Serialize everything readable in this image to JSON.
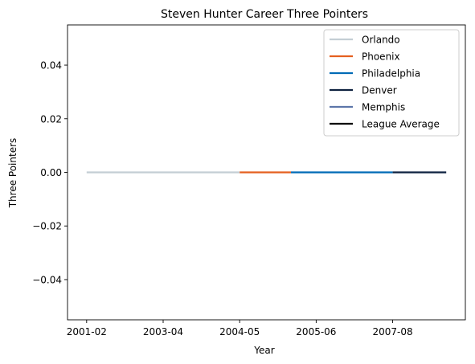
{
  "chart_data": {
    "type": "line",
    "title": "Steven Hunter Career Three Pointers",
    "xlabel": "Year",
    "ylabel": "Three Pointers",
    "x_tick_labels": [
      "2001-02",
      "2003-04",
      "2004-05",
      "2005-06",
      "2007-08"
    ],
    "x_tick_positions": [
      0,
      1,
      2,
      3,
      4
    ],
    "ylim": [
      -0.055,
      0.055
    ],
    "y_ticks": [
      -0.04,
      -0.02,
      0.0,
      0.02,
      0.04
    ],
    "y_tick_labels": [
      "−0.04",
      "−0.02",
      "0.00",
      "0.02",
      "0.04"
    ],
    "xlim": [
      -0.25,
      4.95
    ],
    "grid": false,
    "legend_position": "top-right",
    "series": [
      {
        "name": "Orlando",
        "color": "#c4ced4",
        "x": [
          0,
          2
        ],
        "values": [
          0,
          0
        ]
      },
      {
        "name": "Phoenix",
        "color": "#e56020",
        "x": [
          2,
          2.67
        ],
        "values": [
          0,
          0
        ]
      },
      {
        "name": "Philadelphia",
        "color": "#006bb6",
        "x": [
          2.67,
          4
        ],
        "values": [
          0,
          0
        ]
      },
      {
        "name": "Denver",
        "color": "#0e2240",
        "x": [
          4,
          4.7
        ],
        "values": [
          0,
          0
        ]
      },
      {
        "name": "Memphis",
        "color": "#5d76a9",
        "x": [],
        "values": []
      },
      {
        "name": "League Average",
        "color": "#000000",
        "x": [],
        "values": []
      }
    ]
  }
}
